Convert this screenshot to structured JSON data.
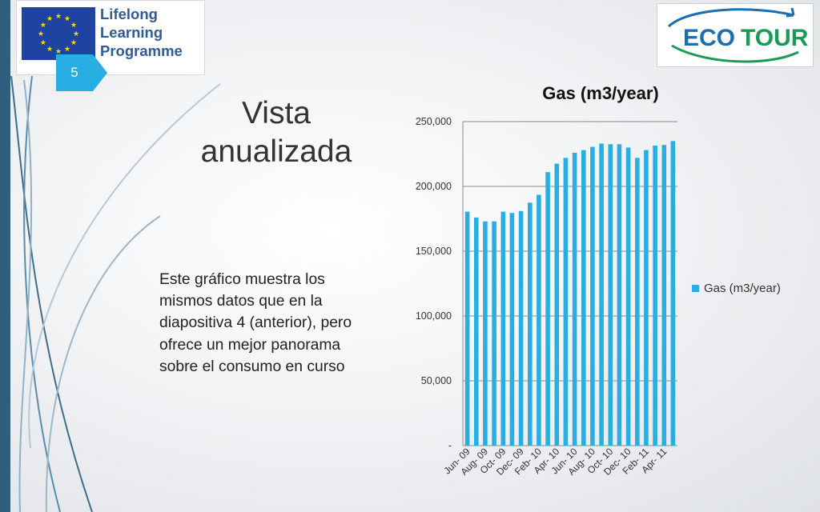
{
  "eu_logo": {
    "lines": [
      "Lifelong",
      "Learning",
      "Programme"
    ]
  },
  "slide_number": "5",
  "eco_logo": {
    "part1": "ECO",
    "part2": "TOUR"
  },
  "slide": {
    "title_line1": "Vista",
    "title_line2": "anualizada",
    "body": "Este gráfico muestra los mismos datos que en la diapositiva 4 (anterior), pero ofrece un mejor panorama sobre el consumo en curso"
  },
  "colors": {
    "accent": "#27aee3",
    "bar": "#29aee3",
    "left_bar": "#2f5f7f",
    "eu_blue": "#1f43a0",
    "eco_green": "#1aa05b"
  },
  "chart_data": {
    "type": "bar",
    "title": "Gas (m3/year)",
    "legend": {
      "label": "Gas (m3/year)",
      "position": "right"
    },
    "ylim": [
      0,
      250000
    ],
    "y_ticks": [
      {
        "value": 0,
        "label": "-"
      },
      {
        "value": 50000,
        "label": "50,000"
      },
      {
        "value": 100000,
        "label": "100,000"
      },
      {
        "value": 150000,
        "label": "150,000"
      },
      {
        "value": 200000,
        "label": "200,000"
      },
      {
        "value": 250000,
        "label": "250,000"
      }
    ],
    "grid": true,
    "x_tick_labels": [
      "Jun- 09",
      "Aug- 09",
      "Oct- 09",
      "Dec- 09",
      "Feb- 10",
      "Apr- 10",
      "Jun- 10",
      "Aug- 10",
      "Oct- 10",
      "Dec- 10",
      "Feb- 11",
      "Apr- 11"
    ],
    "categories": [
      "Jun-09",
      "Jul-09",
      "Aug-09",
      "Sep-09",
      "Oct-09",
      "Nov-09",
      "Dec-09",
      "Jan-10",
      "Feb-10",
      "Mar-10",
      "Apr-10",
      "May-10",
      "Jun-10",
      "Jul-10",
      "Aug-10",
      "Sep-10",
      "Oct-10",
      "Nov-10",
      "Dec-10",
      "Jan-11",
      "Feb-11",
      "Mar-11",
      "Apr-11",
      "May-11"
    ],
    "series": [
      {
        "name": "Gas (m3/year)",
        "values": [
          180500,
          176000,
          173000,
          173000,
          180500,
          179500,
          181000,
          187500,
          193500,
          211000,
          217500,
          222000,
          226000,
          228000,
          230500,
          233000,
          232500,
          232500,
          230000,
          222000,
          228000,
          231500,
          232000,
          235000
        ]
      }
    ]
  }
}
